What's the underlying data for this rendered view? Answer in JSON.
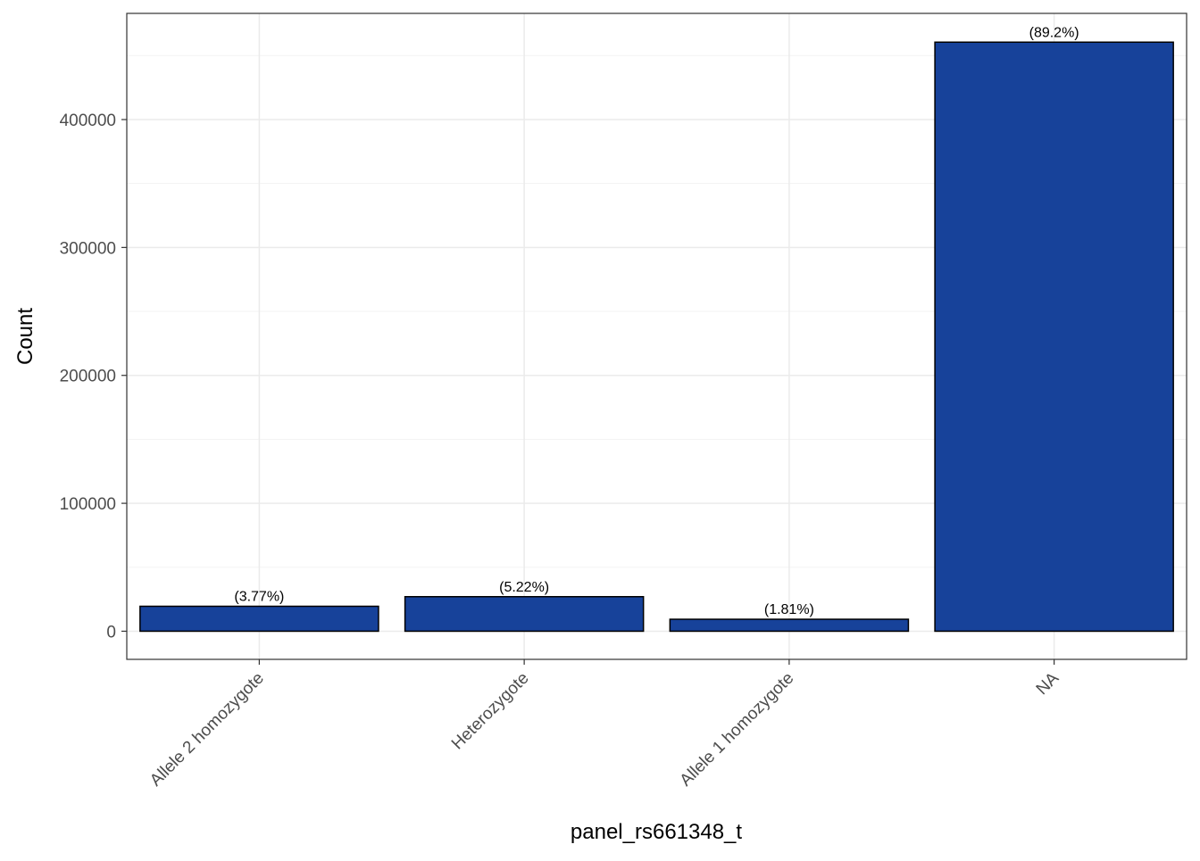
{
  "chart_data": {
    "type": "bar",
    "categories": [
      "Allele 2 homozygote",
      "Heterozygote",
      "Allele 1 homozygote",
      "NA"
    ],
    "values": [
      19500,
      27000,
      9350,
      460500
    ],
    "data_labels": [
      "(3.77%)",
      "(5.22%)",
      "(1.81%)",
      "(89.2%)"
    ],
    "title": "",
    "xlabel": "panel_rs661348_t",
    "ylabel": "Count",
    "ylim": [
      -22000,
      483000
    ],
    "yticks": [
      0,
      100000,
      200000,
      300000,
      400000
    ],
    "ytick_labels": [
      "0",
      "100000",
      "200000",
      "300000",
      "400000"
    ],
    "grid": true,
    "legend": "none",
    "colors": {
      "bar_fill": "#17429A",
      "bar_stroke": "#000000",
      "grid_major": "#EBEBEB",
      "grid_minor": "#F3F3F3",
      "panel_border": "#333333"
    }
  }
}
